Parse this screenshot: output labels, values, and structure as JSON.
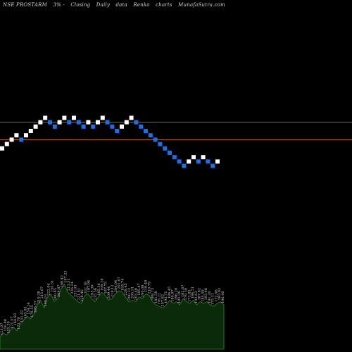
{
  "header": {
    "symbol": "NSE PROSTARM",
    "change": "3% -",
    "mode": "Closing",
    "frequency": "Daily",
    "data_word": "data",
    "chart_type": "Renko",
    "charts_word": "charts",
    "site": "MunafaSutra.com"
  },
  "colors": {
    "background": "#000000",
    "up_brick": "#ffffff",
    "down_brick": "#1e6fe6",
    "resistance_line": "#c46a1c",
    "volume_fill": "#0a2a0a",
    "volume_stroke": "#2f8a2f",
    "label_text": "#d0d0d0"
  },
  "chart_data": {
    "type": "renko",
    "bricks": [
      "up",
      "up",
      "up",
      "up",
      "down",
      "up",
      "up",
      "up",
      "up",
      "up",
      "down",
      "down",
      "up",
      "up",
      "down",
      "up",
      "down",
      "down",
      "up",
      "down",
      "up",
      "up",
      "down",
      "down",
      "down",
      "up",
      "up",
      "up",
      "down",
      "down",
      "down",
      "down",
      "down",
      "down",
      "down",
      "down",
      "down",
      "down",
      "down",
      "up",
      "up",
      "down",
      "up",
      "down",
      "down",
      "up"
    ],
    "lines": [
      {
        "name": "upper",
        "level": 7
      },
      {
        "name": "lower",
        "level": 3
      }
    ],
    "volume": [
      40,
      52,
      45,
      60,
      70,
      58,
      80,
      92,
      105,
      96,
      110,
      140,
      155,
      130,
      165,
      175,
      150,
      160,
      190,
      205,
      180,
      170,
      160,
      150,
      145,
      170,
      175,
      160,
      150,
      165,
      180,
      170,
      155,
      160,
      175,
      185,
      180,
      165,
      150,
      155,
      150,
      165,
      160,
      175,
      170,
      150,
      140,
      135,
      130,
      140,
      155,
      145,
      150,
      140,
      160,
      150,
      145,
      155,
      140,
      150,
      145,
      150,
      140,
      135,
      145,
      150,
      140
    ],
    "volume_labels": [
      "123.07",
      "156.88",
      "155.39",
      "171.57",
      "164.83",
      "173.79",
      "151.42",
      "165.81",
      "154.24",
      "178.55",
      "196.57",
      "210.38",
      "215.67",
      "198.03",
      "222.04",
      "235.51",
      "190.45",
      "209.87",
      "198.42",
      "197.23",
      "213.51",
      "236.24",
      "235.03",
      "221.81",
      "228.46",
      "202.18",
      "197.94",
      "195.39",
      "235.56",
      "185.36",
      "199.28",
      "187.75",
      "209.44",
      "218.12",
      "204.04",
      "201.67",
      "195.74",
      "229.45",
      "200.23",
      "205.31",
      "203.46",
      "185.47",
      "190.08",
      "218.48",
      "210.79",
      "188.73",
      "181.58",
      "176.22",
      "207.82",
      "193.71",
      "184.45",
      "180.97",
      "196.20",
      "181.36",
      "182.67",
      "179.30",
      "171.85",
      "184.51",
      "192.63",
      "187.62",
      "185.59",
      "193.46",
      "191.30",
      "175.11",
      "172.06",
      "183.03",
      "196.40"
    ]
  }
}
